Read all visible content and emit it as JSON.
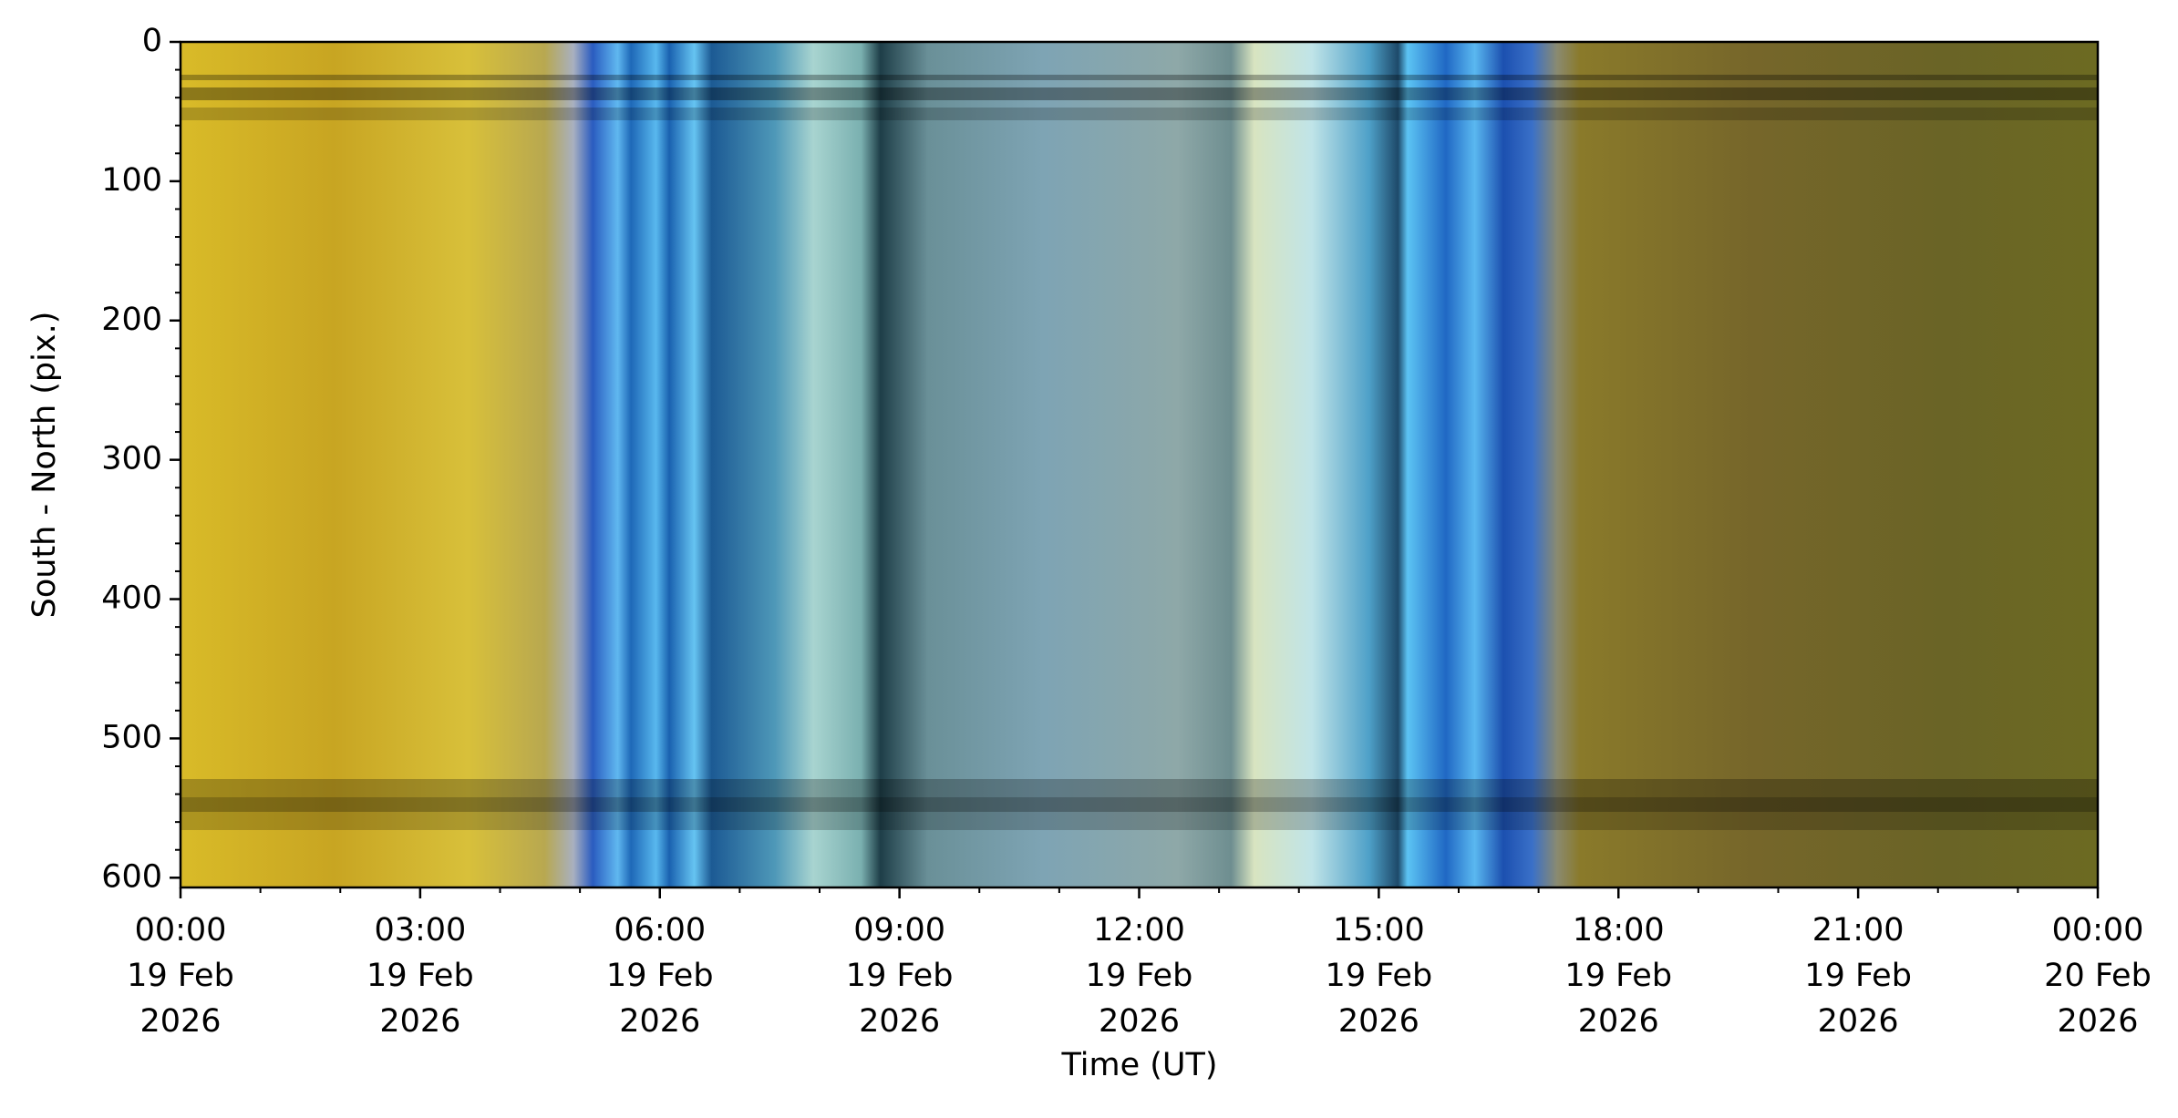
{
  "chart_data": {
    "type": "keogram",
    "xlabel": "Time (UT)",
    "ylabel": "South - North (pix.)",
    "xlim": [
      "2026-02-19T00:00",
      "2026-02-20T00:00"
    ],
    "xticks": [
      {
        "value": "2026-02-19T00:00",
        "label": [
          "00:00",
          "19 Feb",
          "2026"
        ]
      },
      {
        "value": "2026-02-19T03:00",
        "label": [
          "03:00",
          "19 Feb",
          "2026"
        ]
      },
      {
        "value": "2026-02-19T06:00",
        "label": [
          "06:00",
          "19 Feb",
          "2026"
        ]
      },
      {
        "value": "2026-02-19T09:00",
        "label": [
          "09:00",
          "19 Feb",
          "2026"
        ]
      },
      {
        "value": "2026-02-19T12:00",
        "label": [
          "12:00",
          "19 Feb",
          "2026"
        ]
      },
      {
        "value": "2026-02-19T15:00",
        "label": [
          "15:00",
          "19 Feb",
          "2026"
        ]
      },
      {
        "value": "2026-02-19T18:00",
        "label": [
          "18:00",
          "19 Feb",
          "2026"
        ]
      },
      {
        "value": "2026-02-19T21:00",
        "label": [
          "21:00",
          "19 Feb",
          "2026"
        ]
      },
      {
        "value": "2026-02-20T00:00",
        "label": [
          "00:00",
          "20 Feb",
          "2026"
        ]
      }
    ],
    "xminorticks": [
      "2026-02-19T01:00",
      "2026-02-19T02:00",
      "2026-02-19T04:00",
      "2026-02-19T05:00",
      "2026-02-19T07:00",
      "2026-02-19T08:00",
      "2026-02-19T10:00",
      "2026-02-19T11:00",
      "2026-02-19T13:00",
      "2026-02-19T14:00",
      "2026-02-19T16:00",
      "2026-02-19T17:00",
      "2026-02-19T19:00",
      "2026-02-19T20:00",
      "2026-02-19T22:00",
      "2026-02-19T23:00"
    ],
    "ylim": [
      0,
      607
    ],
    "y_inverted": true,
    "yticks": [
      0,
      100,
      200,
      300,
      400,
      500,
      600
    ],
    "yminorticks": [
      20,
      40,
      60,
      80,
      120,
      140,
      160,
      180,
      220,
      240,
      260,
      280,
      320,
      340,
      360,
      380,
      420,
      440,
      460,
      480,
      520,
      540,
      560,
      580
    ]
  }
}
